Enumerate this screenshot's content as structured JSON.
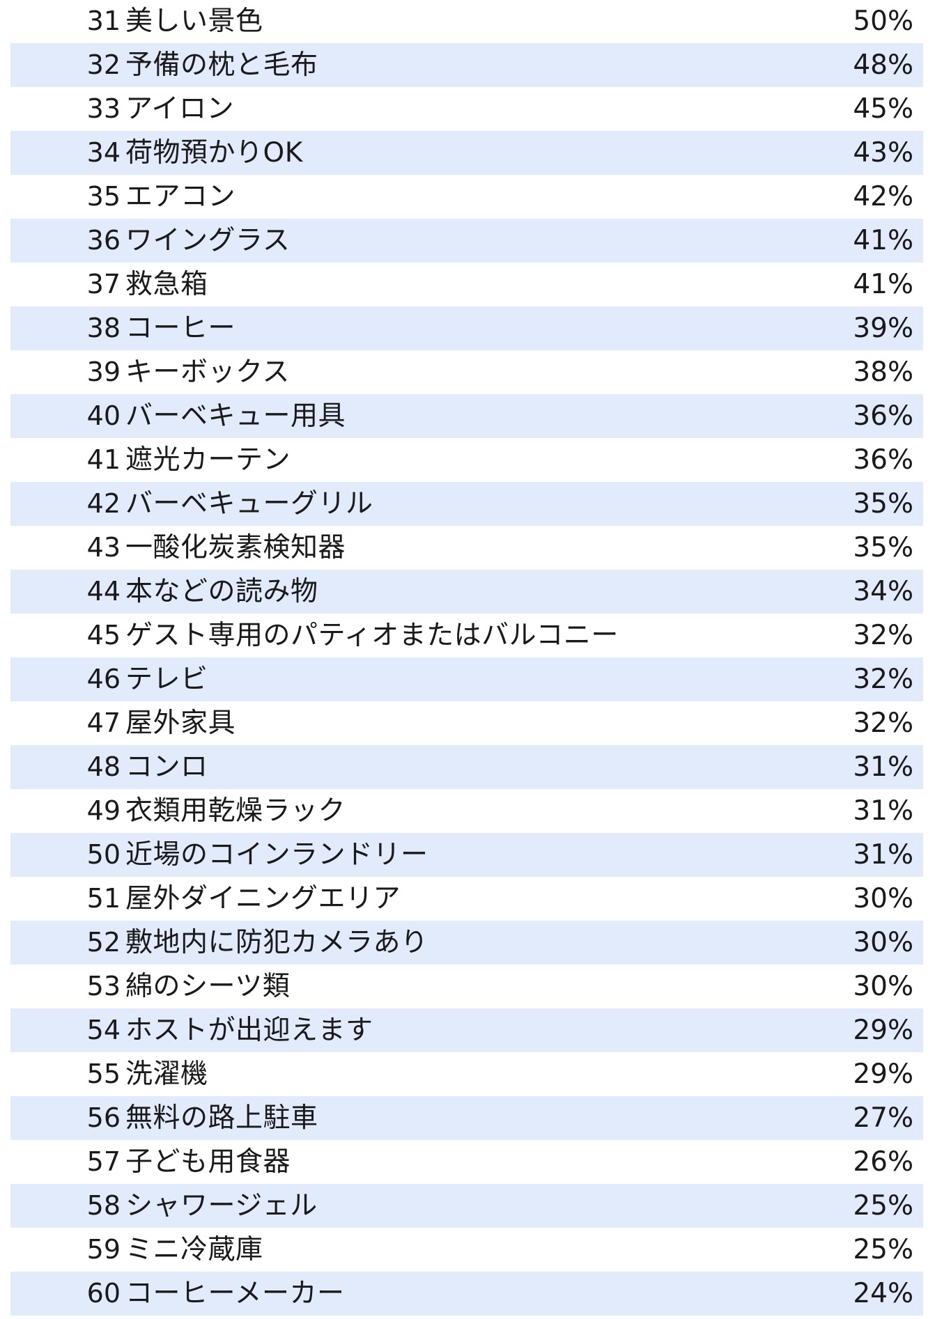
{
  "rows": [
    {
      "rank": "31",
      "label": "美しい景色",
      "pct": "50%"
    },
    {
      "rank": "32",
      "label": "予備の枕と毛布",
      "pct": "48%"
    },
    {
      "rank": "33",
      "label": "アイロン",
      "pct": "45%"
    },
    {
      "rank": "34",
      "label": "荷物預かりOK",
      "pct": "43%"
    },
    {
      "rank": "35",
      "label": "エアコン",
      "pct": "42%"
    },
    {
      "rank": "36",
      "label": "ワイングラス",
      "pct": "41%"
    },
    {
      "rank": "37",
      "label": "救急箱",
      "pct": "41%"
    },
    {
      "rank": "38",
      "label": "コーヒー",
      "pct": "39%"
    },
    {
      "rank": "39",
      "label": "キーボックス",
      "pct": "38%"
    },
    {
      "rank": "40",
      "label": "バーベキュー用具",
      "pct": "36%"
    },
    {
      "rank": "41",
      "label": "遮光カーテン",
      "pct": "36%"
    },
    {
      "rank": "42",
      "label": "バーベキューグリル",
      "pct": "35%"
    },
    {
      "rank": "43",
      "label": "一酸化炭素検知器",
      "pct": "35%"
    },
    {
      "rank": "44",
      "label": "本などの読み物",
      "pct": "34%"
    },
    {
      "rank": "45",
      "label": "ゲスト専用のパティオまたはバルコニー",
      "pct": "32%"
    },
    {
      "rank": "46",
      "label": "テレビ",
      "pct": "32%"
    },
    {
      "rank": "47",
      "label": "屋外家具",
      "pct": "32%"
    },
    {
      "rank": "48",
      "label": "コンロ",
      "pct": "31%"
    },
    {
      "rank": "49",
      "label": "衣類用乾燥ラック",
      "pct": "31%"
    },
    {
      "rank": "50",
      "label": "近場のコインランドリー",
      "pct": "31%"
    },
    {
      "rank": "51",
      "label": "屋外ダイニングエリア",
      "pct": "30%"
    },
    {
      "rank": "52",
      "label": "敷地内に防犯カメラあり",
      "pct": "30%"
    },
    {
      "rank": "53",
      "label": "綿のシーツ類",
      "pct": "30%"
    },
    {
      "rank": "54",
      "label": "ホストが出迎えます",
      "pct": "29%"
    },
    {
      "rank": "55",
      "label": "洗濯機",
      "pct": "29%"
    },
    {
      "rank": "56",
      "label": "無料の路上駐車",
      "pct": "27%"
    },
    {
      "rank": "57",
      "label": "子ども用食器",
      "pct": "26%"
    },
    {
      "rank": "58",
      "label": "シャワージェル",
      "pct": "25%"
    },
    {
      "rank": "59",
      "label": "ミニ冷蔵庫",
      "pct": "25%"
    },
    {
      "rank": "60",
      "label": "コーヒーメーカー",
      "pct": "24%"
    }
  ],
  "colors": {
    "stripe": "#e1ebfb",
    "background": "#ffffff",
    "text": "#1a1a1a"
  }
}
